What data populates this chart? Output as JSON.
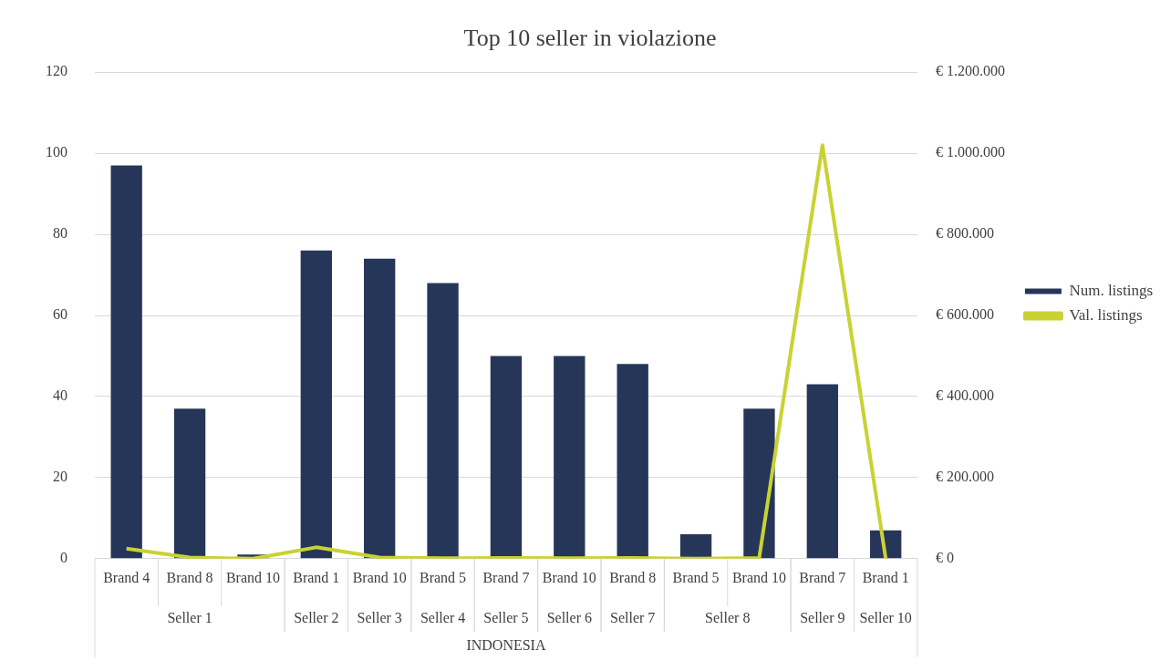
{
  "chart_data": {
    "type": "bar",
    "title": "Top 10 seller in violazione",
    "categories": [
      "Brand 4",
      "Brand 8",
      "Brand 10",
      "Brand 1",
      "Brand 10",
      "Brand 5",
      "Brand 7",
      "Brand 10",
      "Brand 8",
      "Brand 5",
      "Brand 10",
      "Brand 7",
      "Brand 1"
    ],
    "series": [
      {
        "name": "Num. listings",
        "color": "#263659",
        "values": [
          97,
          37,
          1,
          76,
          74,
          68,
          50,
          50,
          48,
          6,
          37,
          43,
          7
        ]
      },
      {
        "name": "Val. listings",
        "type": "line",
        "axis": "y2",
        "color": "#c9d232",
        "values": [
          25000,
          3000,
          0,
          28000,
          3000,
          1000,
          2000,
          1000,
          2000,
          0,
          2000,
          1020000,
          0
        ]
      }
    ],
    "ylim": [
      0,
      120
    ],
    "yticks": [
      0,
      20,
      40,
      60,
      80,
      100,
      120
    ],
    "y2lim": [
      0,
      1200000
    ],
    "y2ticks": [
      {
        "value": 0,
        "label": "€ 0"
      },
      {
        "value": 200000,
        "label": "€ 200.000"
      },
      {
        "value": 400000,
        "label": "€ 400.000"
      },
      {
        "value": 600000,
        "label": "€ 600.000"
      },
      {
        "value": 800000,
        "label": "€ 800.000"
      },
      {
        "value": 1000000,
        "label": "€ 1.000.000"
      },
      {
        "value": 1200000,
        "label": "€ 1.200.000"
      }
    ],
    "annotations": [
      "Seller 1",
      "Seller 2",
      "Seller 3",
      "Seller 4",
      "Seller 5",
      "Seller 6",
      "Seller 7",
      "Seller 8",
      "Seller 9",
      "Seller 10",
      "INDONESIA"
    ],
    "grid": "y",
    "legend": "right",
    "marker": "none",
    "line_style": "solid"
  }
}
